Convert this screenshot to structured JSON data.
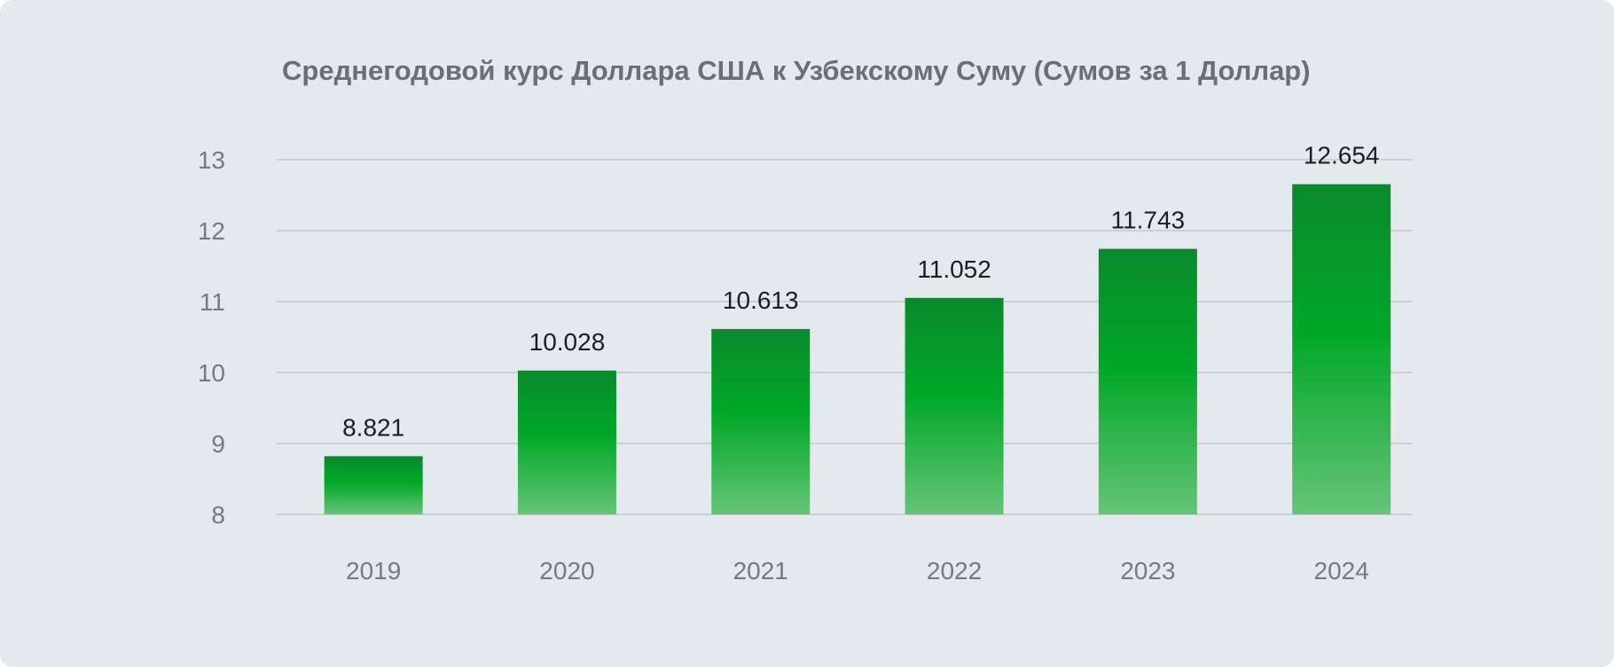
{
  "chart_data": {
    "type": "bar",
    "title": "Среднегодовой курс Доллара США к Узбекскому Суму (Сумов за 1 Доллар)",
    "xlabel": "",
    "ylabel": "",
    "categories": [
      "2019",
      "2020",
      "2021",
      "2022",
      "2023",
      "2024"
    ],
    "values": [
      8.821,
      10.028,
      10.613,
      11.052,
      11.743,
      12.654
    ],
    "value_labels": [
      "8.821",
      "10.028",
      "10.613",
      "11.052",
      "11.743",
      "12.654"
    ],
    "ylim": [
      8,
      13
    ],
    "y_ticks": [
      8,
      9,
      10,
      11,
      12,
      13
    ],
    "grid": true,
    "legend": "none",
    "colors": {
      "background": "#e4e9ed",
      "bar_top": "#0a8a2c",
      "bar_mid": "#00a827",
      "bar_bottom": "#66c478",
      "gridline": "#c3c8cd",
      "tick_text": "#76797d",
      "label_text": "#1c1e21",
      "title_text": "#6a6f74"
    }
  }
}
